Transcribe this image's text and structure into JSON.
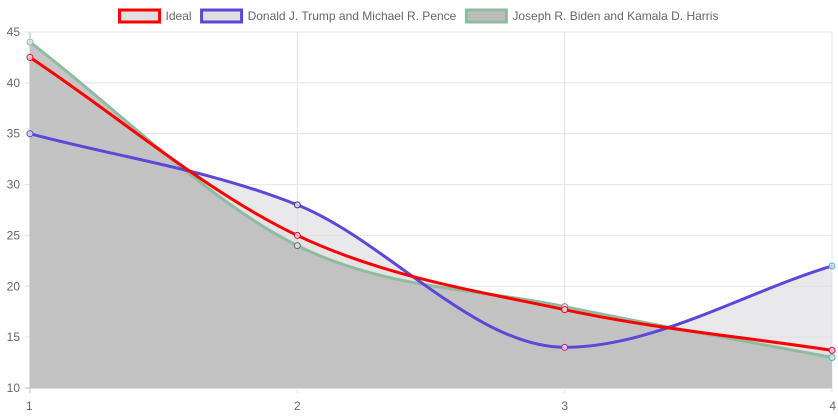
{
  "chart_data": {
    "type": "line",
    "title": "",
    "xlabel": "",
    "ylabel": "",
    "x": [
      1,
      2,
      3,
      4
    ],
    "x_tick_labels": [
      "1",
      "2",
      "3",
      "4"
    ],
    "ylim": [
      10,
      45
    ],
    "y_ticks": [
      10,
      15,
      20,
      25,
      30,
      35,
      40,
      45
    ],
    "grid": true,
    "legend": "top-center",
    "series": [
      {
        "name": "Ideal",
        "values": [
          42.5,
          25,
          17.7,
          13.7
        ],
        "color": "#ff0000",
        "fill": "#e0e0e2",
        "point_color": "#e4003a"
      },
      {
        "name": "Donald J. Trump and Michael R. Pence",
        "values": [
          35,
          28,
          14,
          22
        ],
        "color": "#5b48d9",
        "fill": "#e0e0e2",
        "point_colors": [
          "#5b48d9",
          "#333a6e",
          "#c2168c",
          "#3bb6c8"
        ]
      },
      {
        "name": "Joseph R. Biden and Kamala D. Harris",
        "values": [
          44,
          24,
          18,
          13
        ],
        "color": "#8fbca0",
        "fill": "#bcbcbc",
        "point_colors": [
          "#8fbca0",
          "#6b6b6b",
          "#c86a84",
          "#3bb6c8"
        ]
      }
    ]
  }
}
